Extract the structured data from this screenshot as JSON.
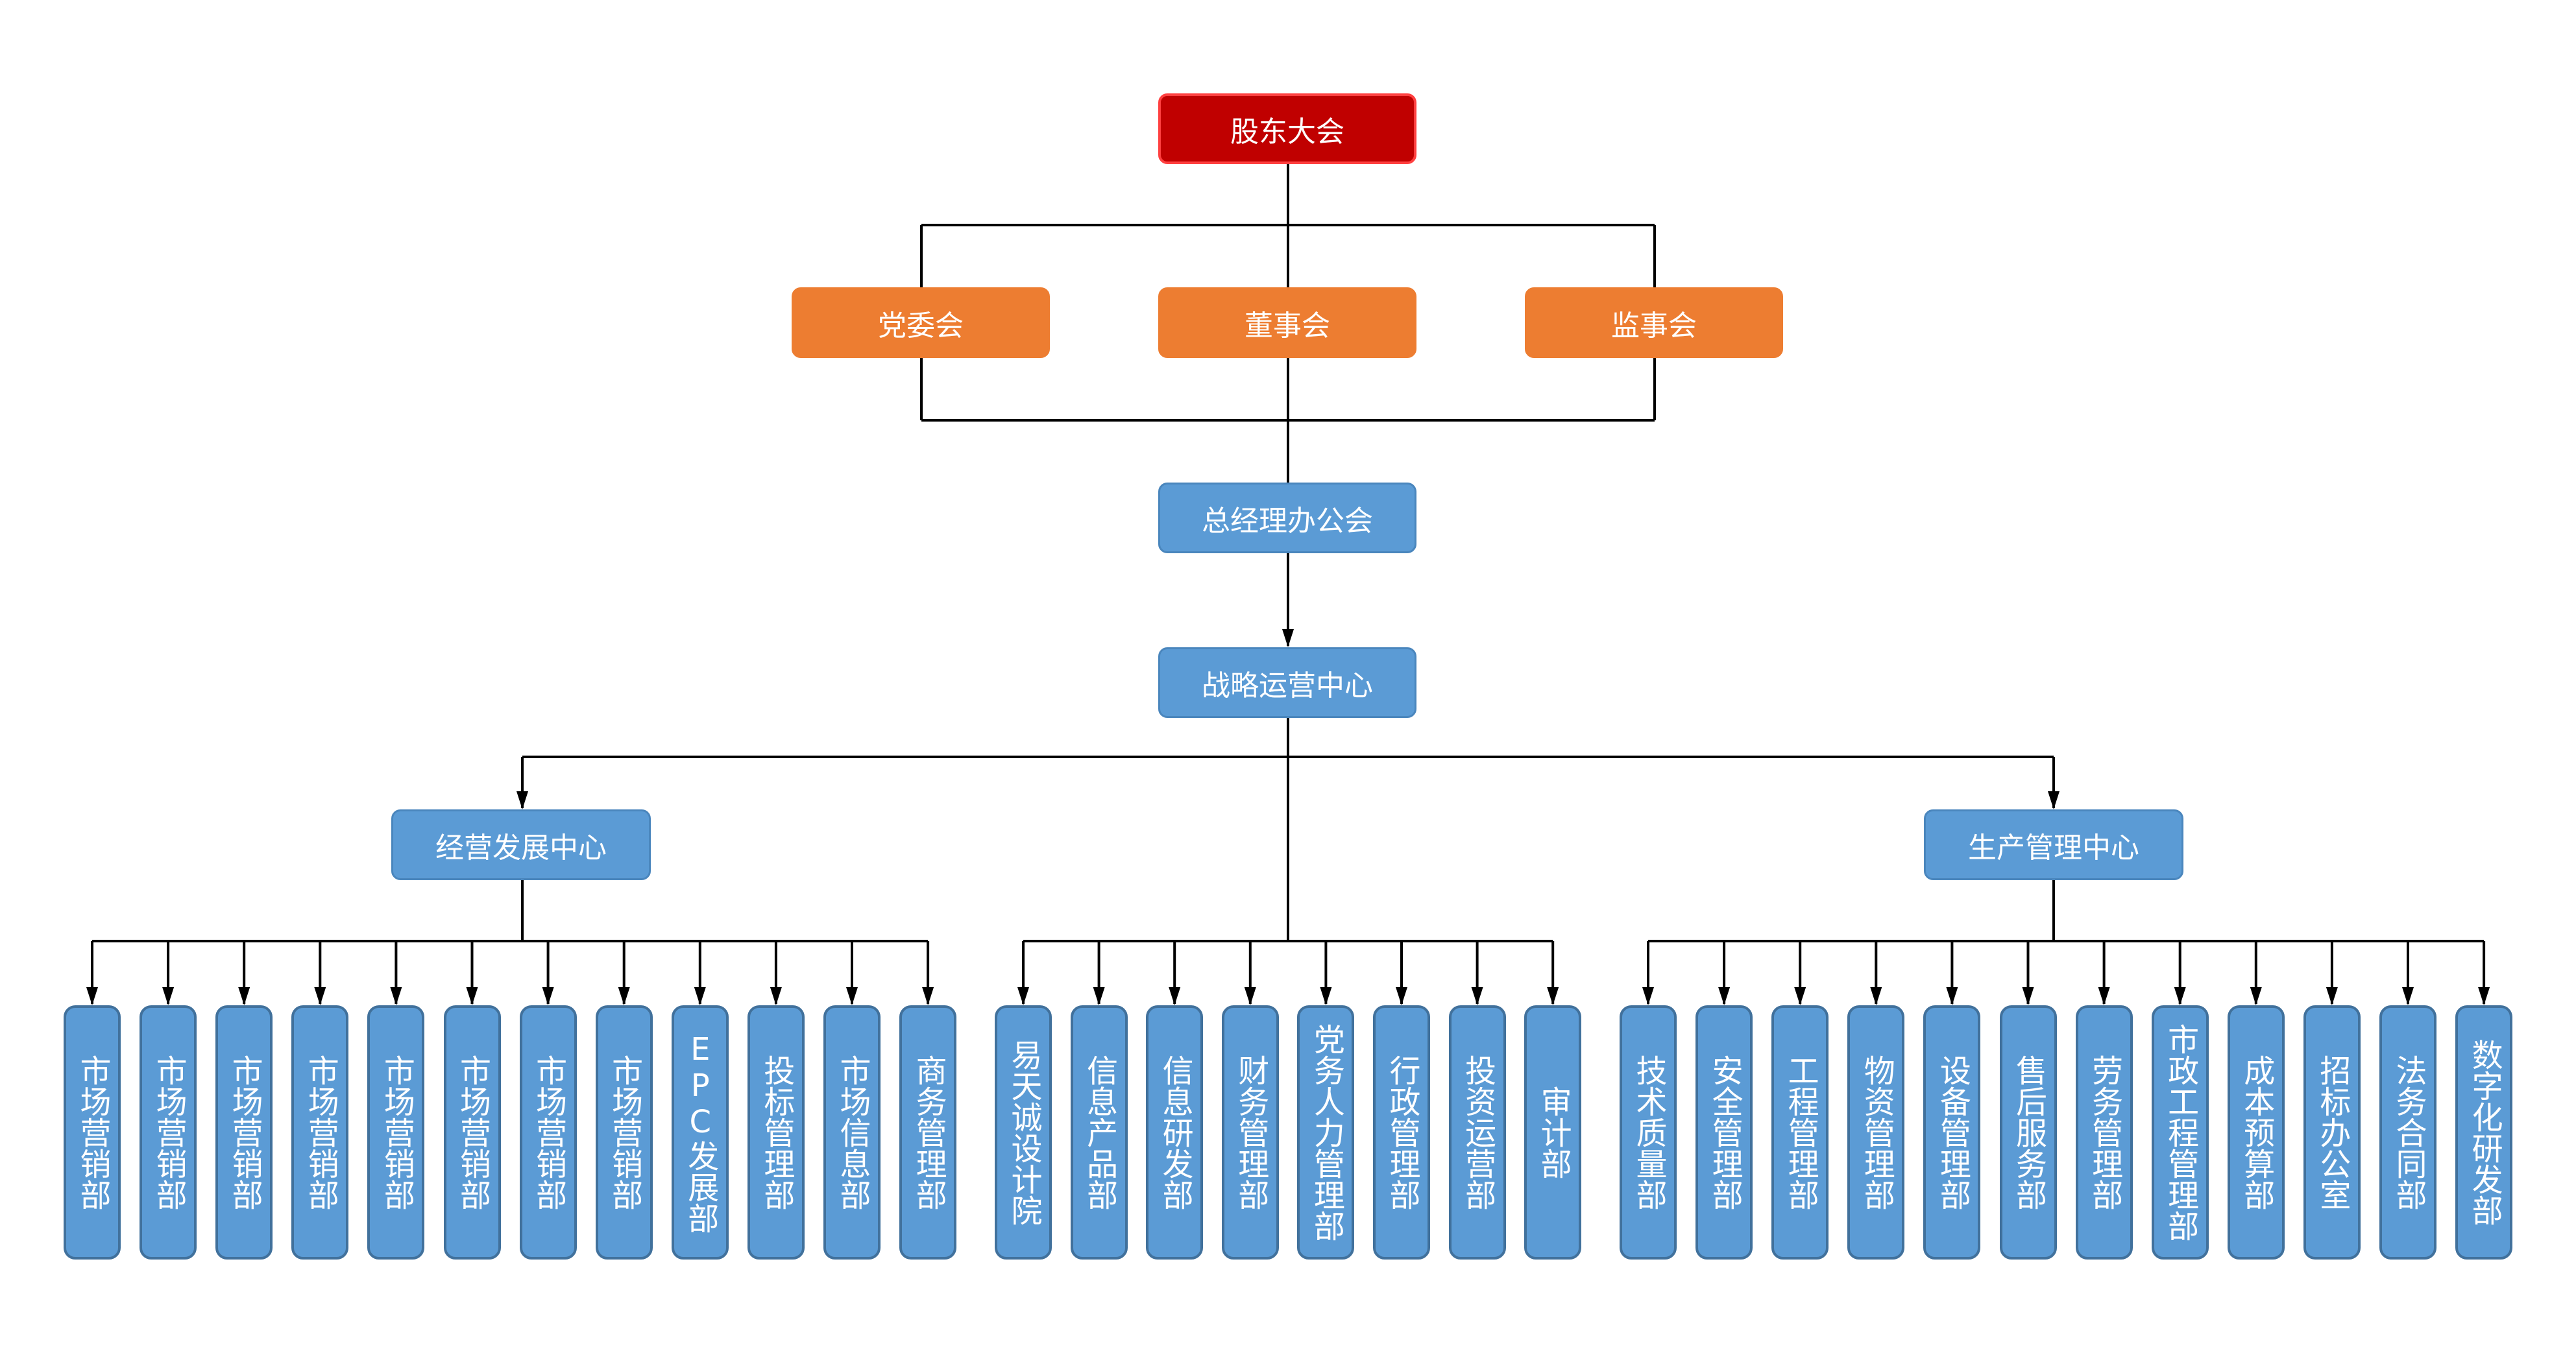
{
  "colors": {
    "top": "#c00000",
    "board": "#ed7d31",
    "blue": "#5b9bd5",
    "line": "#000000"
  },
  "top": {
    "label": "股东大会"
  },
  "boards": [
    {
      "label": "党委会"
    },
    {
      "label": "董事会"
    },
    {
      "label": "监事会"
    }
  ],
  "gm_office": {
    "label": "总经理办公会"
  },
  "strategy_center": {
    "label": "战略运营中心"
  },
  "centers": [
    {
      "label": "经营发展中心"
    },
    {
      "label": "生产管理中心"
    }
  ],
  "groups": [
    {
      "name": "business",
      "departments": [
        "市场营销部",
        "市场营销部",
        "市场营销部",
        "市场营销部",
        "市场营销部",
        "市场营销部",
        "市场营销部",
        "市场营销部",
        "EPC发展部",
        "投标管理部",
        "市场信息部",
        "商务管理部"
      ]
    },
    {
      "name": "strategy",
      "departments": [
        "易天诚设计院",
        "信息产品部",
        "信息研发部",
        "财务管理部",
        "党务人力管理部",
        "行政管理部",
        "投资运营部",
        "审计部"
      ]
    },
    {
      "name": "production",
      "departments": [
        "技术质量部",
        "安全管理部",
        "工程管理部",
        "物资管理部",
        "设备管理部",
        "售后服务部",
        "劳务管理部",
        "市政工程管理部",
        "成本预算部",
        "招标办公室",
        "法务合同部",
        "数字化研发部"
      ]
    }
  ]
}
